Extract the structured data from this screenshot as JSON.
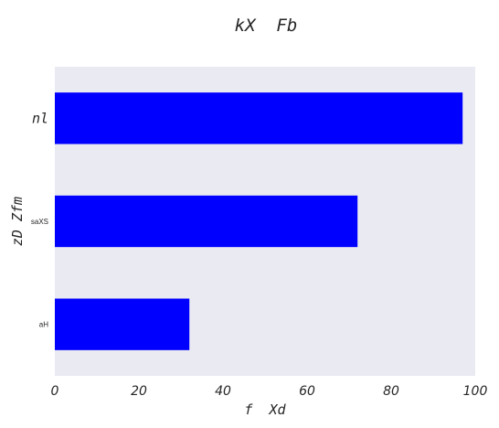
{
  "chart_data": {
    "type": "bar",
    "orientation": "horizontal",
    "title": "kX  Fb",
    "xlabel": "f  Xd",
    "ylabel": "zD Zfm",
    "categories": [
      "aH",
      "saXS",
      "nl"
    ],
    "values": [
      32,
      72,
      97
    ],
    "xlim": [
      0,
      100
    ],
    "xticks": [
      "0",
      "20",
      "40",
      "60",
      "80",
      "100"
    ],
    "grid": false,
    "bar_color": "#0000ff",
    "plot_background": "#eaeaf2"
  }
}
